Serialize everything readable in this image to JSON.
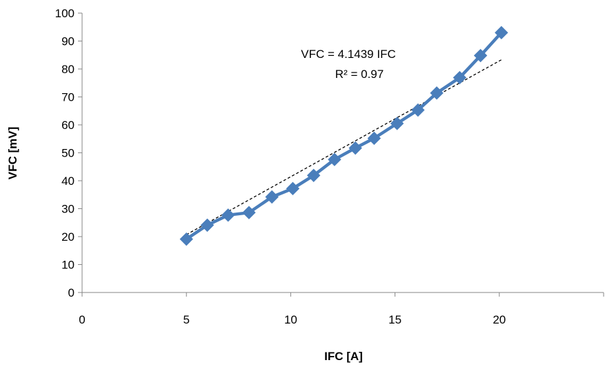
{
  "chart_data": {
    "type": "scatter",
    "title": "",
    "xlabel": "IFC  [A]",
    "ylabel": "VFC [mV]",
    "xlim": [
      0,
      25
    ],
    "ylim": [
      0,
      100
    ],
    "x_ticks": [
      0,
      5,
      10,
      15,
      20
    ],
    "y_ticks": [
      0,
      10,
      20,
      30,
      40,
      50,
      60,
      70,
      80,
      90,
      100
    ],
    "grid": false,
    "legend": "none",
    "series": [
      {
        "color": "#4A7EBB",
        "marker": "diamond",
        "line": "solid",
        "x": [
          5.0,
          6.0,
          7.0,
          8.0,
          9.1,
          10.1,
          11.1,
          12.1,
          13.1,
          14.0,
          15.1,
          16.1,
          17.0,
          18.1,
          19.1,
          20.1
        ],
        "y": [
          19.1,
          24.1,
          27.7,
          28.6,
          34.2,
          37.2,
          41.9,
          47.6,
          51.7,
          55.2,
          60.5,
          65.3,
          71.4,
          76.9,
          84.8,
          93.0
        ]
      }
    ],
    "trendline": {
      "type": "linear-through-origin",
      "slope": 4.1439,
      "x_range": [
        5.0,
        20.1
      ],
      "color": "#000000",
      "style": "dashed"
    },
    "annotations": {
      "equation": "VFC = 4.1439 IFC",
      "r_squared": "R² = 0.97"
    }
  }
}
